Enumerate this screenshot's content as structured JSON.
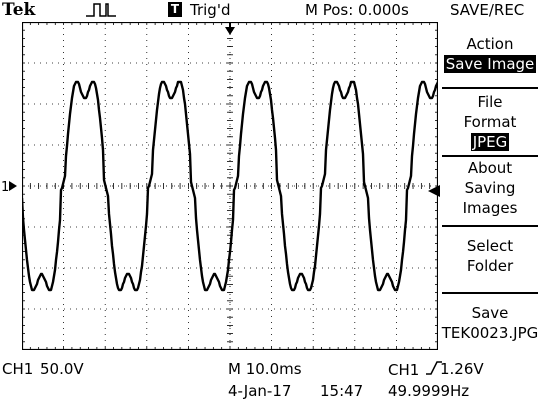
{
  "header": {
    "brand": "Tek",
    "acquisition_icon": "square-pulse-icon",
    "trigger_badge": "T",
    "trigger_status": "Trig'd",
    "main_position": "M Pos: 0.000s"
  },
  "menu": {
    "title": "SAVE/REC",
    "items": [
      {
        "lines": [
          "Action"
        ],
        "highlight": "Save Image"
      },
      {
        "lines": [
          "File",
          "Format"
        ],
        "highlight": "JPEG"
      },
      {
        "lines": [
          "About",
          "Saving",
          "Images"
        ],
        "highlight": ""
      },
      {
        "lines": [
          "Select",
          "Folder"
        ],
        "highlight": ""
      },
      {
        "lines": [
          "Save",
          "TEK0023.JPG"
        ],
        "highlight": ""
      }
    ]
  },
  "channel": {
    "marker": "1",
    "label": "CH1",
    "scale": "50.0V"
  },
  "timebase": "M 10.0ms",
  "trigger": {
    "source": "CH1",
    "slope_icon": "rising-edge-icon",
    "level": "1.26V"
  },
  "date": "4-Jan-17",
  "time": "15:47",
  "frequency": "49.9999Hz",
  "waveform": {
    "cycles": 5,
    "color": "#000000",
    "grid_color": "#000000"
  }
}
